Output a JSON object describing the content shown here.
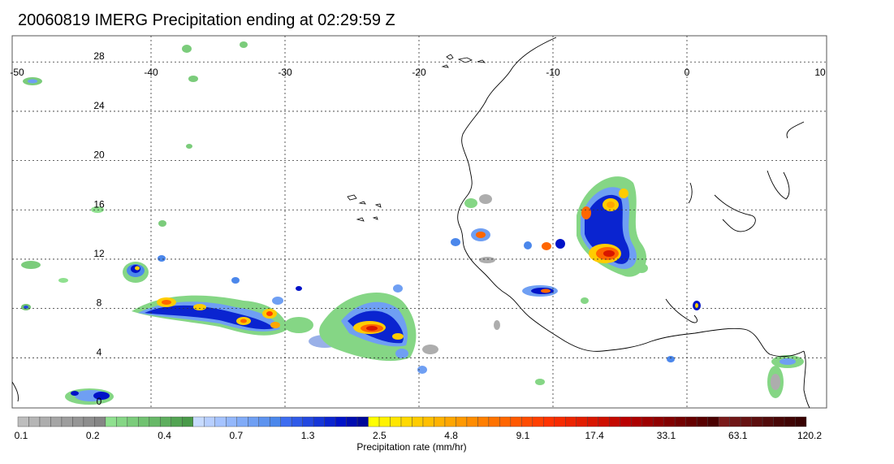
{
  "title": "20060819 IMERG Precipitation ending at 02:29:59 Z",
  "map": {
    "lon_range": [
      -50,
      10
    ],
    "lat_range": [
      -1,
      30
    ],
    "lon_ticks": [
      "-50",
      "-40",
      "-30",
      "-20",
      "-10",
      "0",
      "10"
    ],
    "lat_ticks": [
      "0",
      "4",
      "8",
      "12",
      "16",
      "20",
      "24",
      "28"
    ],
    "grid": "dotted",
    "coastline_color": "#000000"
  },
  "colorbar": {
    "title": "Precipitation rate (mm/hr)",
    "labels": [
      "0.1",
      "0.2",
      "0.4",
      "0.7",
      "1.3",
      "2.5",
      "4.8",
      "9.1",
      "17.4",
      "33.1",
      "63.1",
      "120.2"
    ],
    "colors": [
      "#bdbdbd",
      "#b5b5b5",
      "#adadad",
      "#a5a5a5",
      "#9d9d9d",
      "#959595",
      "#8d8d8d",
      "#858585",
      "#8fe08f",
      "#85d685",
      "#7bcc7b",
      "#71c271",
      "#67b867",
      "#5dae5d",
      "#53a453",
      "#499a49",
      "#c7dbff",
      "#b7cfff",
      "#a5c3ff",
      "#93b7fb",
      "#81abf7",
      "#6f9ff3",
      "#5d93ef",
      "#4b87eb",
      "#3c6cf0",
      "#2f5ae8",
      "#2248e0",
      "#1536d8",
      "#0a24d0",
      "#0012c8",
      "#000cb0",
      "#000898",
      "#ffff00",
      "#fff200",
      "#ffe600",
      "#ffd900",
      "#ffcc00",
      "#ffbf00",
      "#ffb200",
      "#ffa600",
      "#ff9900",
      "#ff8c00",
      "#ff7f00",
      "#ff7300",
      "#ff6600",
      "#ff5900",
      "#ff4c00",
      "#ff4000",
      "#ff3300",
      "#f62b00",
      "#ec2400",
      "#e21d00",
      "#d81600",
      "#ce0f00",
      "#c40800",
      "#ba0000",
      "#ac0000",
      "#9e0000",
      "#900000",
      "#820000",
      "#740000",
      "#660000",
      "#580000",
      "#4a0000",
      "#7a1a1a",
      "#701616",
      "#661212",
      "#5c0e0e",
      "#520a0a",
      "#480606",
      "#400404",
      "#380202"
    ]
  }
}
